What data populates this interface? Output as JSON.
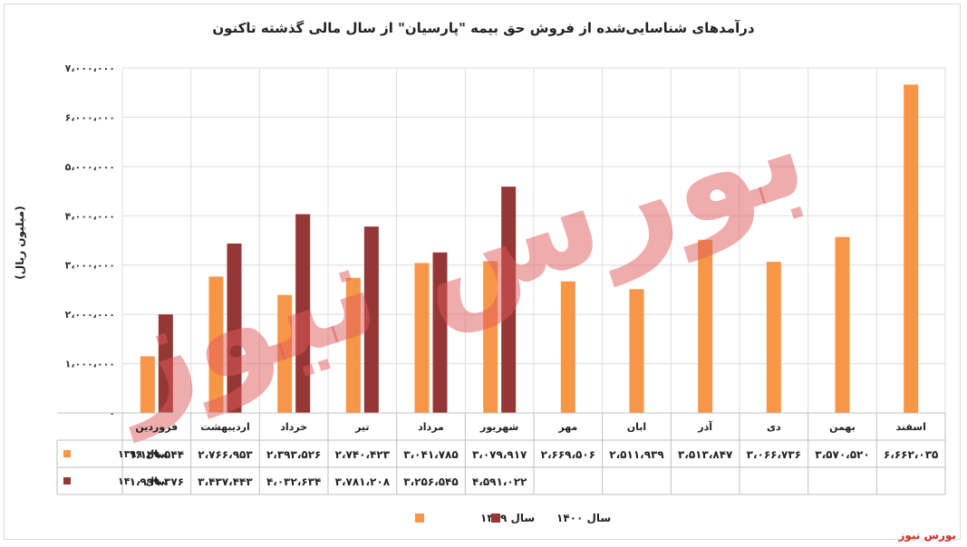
{
  "chart_data": {
    "type": "bar",
    "title": "درآمدهای شناسایی‌شده از فروش حق بیمه \"پارسیان\" از سال مالی گذشته تاکنون",
    "ylabel": "(میلیون ریال)",
    "ylim": [
      0,
      7000000
    ],
    "yticks": [
      0,
      1000000,
      2000000,
      3000000,
      4000000,
      5000000,
      6000000,
      7000000
    ],
    "ytick_labels": [
      "۰",
      "۱،۰۰۰،۰۰۰",
      "۲،۰۰۰،۰۰۰",
      "۳،۰۰۰،۰۰۰",
      "۴،۰۰۰،۰۰۰",
      "۵،۰۰۰،۰۰۰",
      "۶،۰۰۰،۰۰۰",
      "۷،۰۰۰،۰۰۰"
    ],
    "grid": true,
    "legend_position": "bottom",
    "categories": [
      "فروردین",
      "اردیبهشت",
      "خرداد",
      "تیر",
      "مرداد",
      "شهریور",
      "مهر",
      "ابان",
      "آذر",
      "دی",
      "بهمن",
      "اسفند"
    ],
    "series": [
      {
        "name": "سال ۱۳۹۹",
        "color": "#f79646",
        "values": [
          1149544,
          2766953,
          2393526,
          2740423,
          3041785,
          3079917,
          2669506,
          2511939,
          3513847,
          3066736,
          3570520,
          6662035
        ],
        "labels": [
          "۱،۱۴۹،۵۴۴",
          "۲،۷۶۶،۹۵۳",
          "۲،۳۹۳،۵۲۶",
          "۲،۷۴۰،۴۲۳",
          "۳،۰۴۱،۷۸۵",
          "۳،۰۷۹،۹۱۷",
          "۲،۶۶۹،۵۰۶",
          "۲،۵۱۱،۹۳۹",
          "۳،۵۱۳،۸۴۷",
          "۳،۰۶۶،۷۳۶",
          "۳،۵۷۰،۵۲۰",
          "۶،۶۶۲،۰۳۵"
        ]
      },
      {
        "name": "سال ۱۴۰۰",
        "color": "#953735",
        "values": [
          1999376,
          3437443,
          4032634,
          3781208,
          3256545,
          4591022,
          null,
          null,
          null,
          null,
          null,
          null
        ],
        "labels": [
          "۱،۹۹۹،۳۷۶",
          "۳،۴۳۷،۴۴۳",
          "۴،۰۳۲،۶۳۴",
          "۳،۷۸۱،۲۰۸",
          "۳،۲۵۶،۵۴۵",
          "۴،۵۹۱،۰۲۲",
          "",
          "",
          "",
          "",
          "",
          ""
        ]
      }
    ]
  },
  "watermark": "بورس نیوز",
  "brand": "بورس نیوز"
}
